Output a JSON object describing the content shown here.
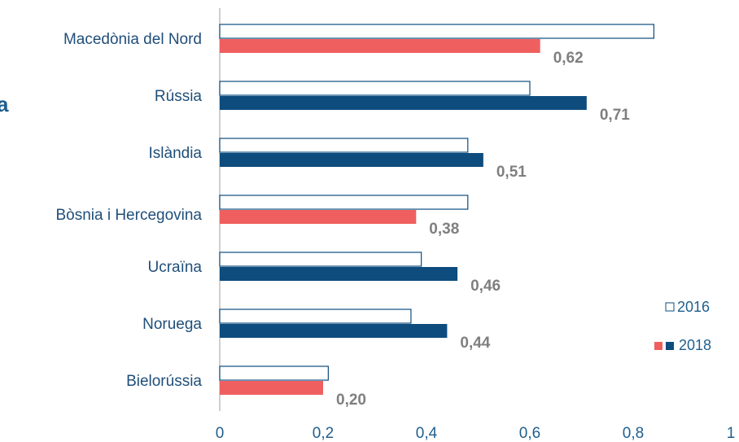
{
  "chart_data": {
    "type": "hbar",
    "title": "a",
    "categories": [
      "Macedònia del Nord",
      "Rússia",
      "Islàndia",
      "Bòsnia i Hercegovina",
      "Ucraïna",
      "Noruega",
      "Bielorússia"
    ],
    "series": [
      {
        "name": "2016",
        "color": "#ffffff",
        "stroke": "#0e4c7e",
        "values": [
          0.84,
          0.6,
          0.48,
          0.48,
          0.39,
          0.37,
          0.21
        ]
      },
      {
        "name": "2018",
        "colors": [
          "#ef5f5f",
          "#0e4c7e",
          "#0e4c7e",
          "#ef5f5f",
          "#0e4c7e",
          "#0e4c7e",
          "#ef5f5f"
        ],
        "values": [
          0.62,
          0.71,
          0.51,
          0.38,
          0.46,
          0.44,
          0.2
        ],
        "value_labels": [
          "0,62",
          "0,71",
          "0,51",
          "0,38",
          "0,46",
          "0,44",
          "0,20"
        ]
      }
    ],
    "xlim": [
      0,
      1
    ],
    "xticks": [
      0,
      {
        "value": 0.2,
        "label": "0,2"
      },
      {
        "value": 0.4,
        "label": "0,4"
      },
      {
        "value": 0.6,
        "label": "0,6"
      },
      {
        "value": 0.8,
        "label": "0,8"
      },
      1
    ],
    "legend": "right"
  }
}
